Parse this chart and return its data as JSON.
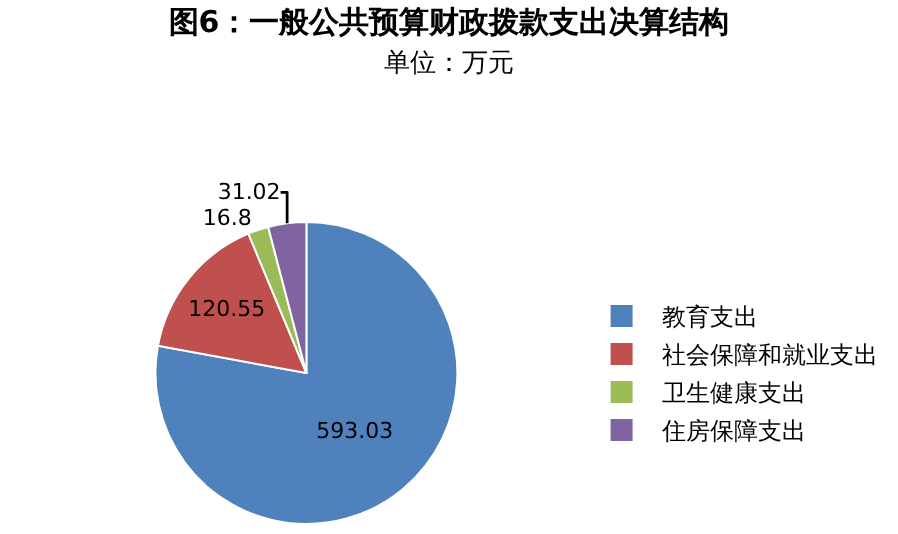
{
  "chart_data": {
    "type": "pie",
    "title": "图6：一般公共预算财政拨款支出决算结构",
    "subtitle": "单位：万元",
    "categories": [
      "教育支出",
      "社会保障和就业支出",
      "卫生健康支出",
      "住房保障支出"
    ],
    "values": [
      593.03,
      120.55,
      16.8,
      31.02
    ],
    "colors": [
      "#4f81bd",
      "#c0504d",
      "#9bbb59",
      "#8064a2"
    ],
    "data_labels": true,
    "legend": "right"
  }
}
